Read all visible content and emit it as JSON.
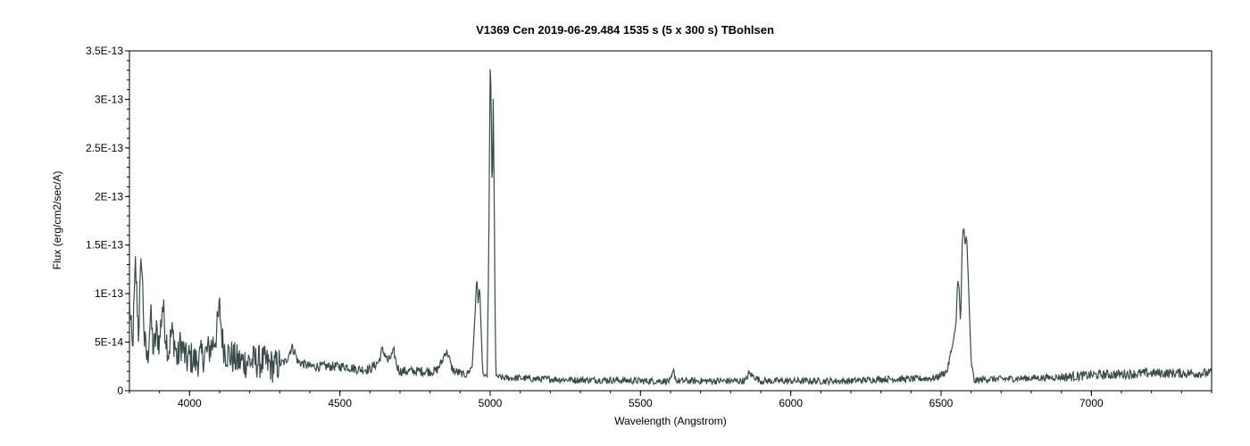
{
  "chart_data": {
    "type": "line",
    "title": "V1369 Cen   2019-06-29.484   1535 s (5 x 300 s)   TBohlsen",
    "xlabel": "Wavelength (Angstrom)",
    "ylabel": "Flux (erg/cm2/sec/A)",
    "xlim": [
      3800,
      7400
    ],
    "ylim": [
      0,
      3.5e-13
    ],
    "grid": false,
    "legend": "none",
    "line_color": "#3a4a4a",
    "x_ticks": [
      {
        "value": 4000,
        "label": "4000"
      },
      {
        "value": 4500,
        "label": "4500"
      },
      {
        "value": 5000,
        "label": "5000"
      },
      {
        "value": 5500,
        "label": "5500"
      },
      {
        "value": 6000,
        "label": "6000"
      },
      {
        "value": 6500,
        "label": "6500"
      },
      {
        "value": 7000,
        "label": "7000"
      }
    ],
    "y_ticks": [
      {
        "value": 0,
        "label": "0"
      },
      {
        "value": 5e-14,
        "label": "5E-14"
      },
      {
        "value": 1e-13,
        "label": "1E-13"
      },
      {
        "value": 1.5e-13,
        "label": "1.5E-13"
      },
      {
        "value": 2e-13,
        "label": "2E-13"
      },
      {
        "value": 2.5e-13,
        "label": "2.5E-13"
      },
      {
        "value": 3e-13,
        "label": "3E-13"
      },
      {
        "value": 3.5e-13,
        "label": "3.5E-13"
      }
    ],
    "series": [
      {
        "x": [
          3800,
          3810,
          3820,
          3830,
          3840,
          3850,
          3860,
          3870,
          3880,
          3890,
          3900,
          3910,
          3920,
          3930,
          3940,
          3950,
          3960,
          3970,
          3980,
          3990,
          4000,
          4020,
          4040,
          4060,
          4080,
          4090,
          4100,
          4110,
          4120,
          4140,
          4160,
          4180,
          4200,
          4240,
          4280,
          4320,
          4340,
          4350,
          4360,
          4400,
          4440,
          4480,
          4520,
          4560,
          4600,
          4630,
          4640,
          4650,
          4660,
          4670,
          4680,
          4690,
          4700,
          4740,
          4780,
          4820,
          4840,
          4850,
          4860,
          4870,
          4880,
          4900,
          4920,
          4940,
          4950,
          4955,
          4960,
          4965,
          4970,
          4975,
          4980,
          4990,
          4995,
          5000,
          5003,
          5007,
          5010,
          5013,
          5017,
          5020,
          5030,
          5050,
          5100,
          5150,
          5200,
          5300,
          5400,
          5500,
          5600,
          5610,
          5620,
          5700,
          5800,
          5850,
          5860,
          5900,
          6000,
          6100,
          6200,
          6300,
          6400,
          6480,
          6520,
          6540,
          6550,
          6555,
          6560,
          6565,
          6570,
          6575,
          6580,
          6585,
          6590,
          6600,
          6610,
          6650,
          6700,
          6800,
          6900,
          7000,
          7100,
          7200,
          7300,
          7400
        ],
        "y": [
          9e-14,
          4e-14,
          1.3e-13,
          6e-14,
          1.4e-13,
          5e-14,
          3e-14,
          8e-14,
          4e-14,
          6e-14,
          5e-14,
          9e-14,
          6e-14,
          4e-14,
          6e-14,
          5e-14,
          3e-14,
          5e-14,
          4e-14,
          3e-14,
          3.5e-14,
          3e-14,
          3.5e-14,
          4e-14,
          5e-14,
          6e-14,
          8.5e-14,
          5e-14,
          4e-14,
          3.5e-14,
          3e-14,
          3e-14,
          3e-14,
          3e-14,
          2.5e-14,
          3e-14,
          4.5e-14,
          4e-14,
          3e-14,
          2.5e-14,
          2.5e-14,
          2.5e-14,
          2.5e-14,
          2.2e-14,
          2.2e-14,
          3e-14,
          4.2e-14,
          3.8e-14,
          3e-14,
          3.5e-14,
          4e-14,
          2.5e-14,
          2e-14,
          2e-14,
          2e-14,
          2e-14,
          3e-14,
          4e-14,
          3.8e-14,
          2.5e-14,
          2e-14,
          1.8e-14,
          1.6e-14,
          2.5e-14,
          8e-14,
          1.18e-13,
          9e-14,
          1.1e-13,
          6e-14,
          2e-14,
          1.5e-14,
          1.5e-14,
          1.4e-13,
          3.3e-13,
          3.1e-13,
          1.9e-13,
          3e-13,
          2.2e-13,
          5e-14,
          1.5e-14,
          1.4e-14,
          1.3e-14,
          1.3e-14,
          1.2e-14,
          1.2e-14,
          1.1e-14,
          1.1e-14,
          1e-14,
          1e-14,
          2e-14,
          1e-14,
          1e-14,
          1e-14,
          1e-14,
          1.8e-14,
          1e-14,
          1e-14,
          1e-14,
          1e-14,
          1.2e-14,
          1.2e-14,
          1.3e-14,
          2e-14,
          5e-14,
          7e-14,
          1.15e-13,
          1.05e-13,
          6.5e-14,
          1.5e-13,
          1.72e-13,
          1.5e-13,
          1.6e-13,
          1.2e-13,
          3e-14,
          1e-14,
          1.2e-14,
          1.2e-14,
          1.3e-14,
          1.4e-14,
          1.6e-14,
          1.7e-14,
          1.8e-14,
          1.8e-14,
          1.8e-14
        ]
      }
    ]
  }
}
